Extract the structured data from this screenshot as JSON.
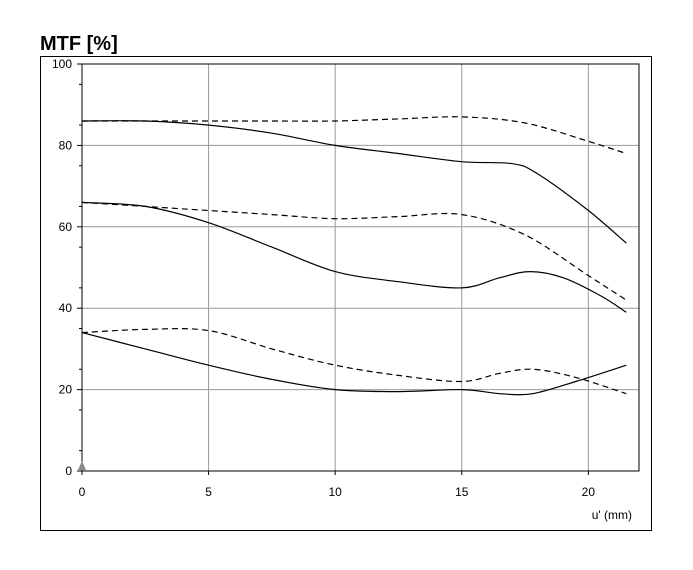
{
  "chart_data": {
    "type": "line",
    "title": "MTF [%]",
    "xlabel": "u' (mm)",
    "ylabel": "",
    "xlim": [
      0,
      22
    ],
    "ylim": [
      0,
      100
    ],
    "xticks": [
      0,
      5,
      10,
      15,
      20
    ],
    "yticks": [
      0,
      20,
      40,
      60,
      80,
      100
    ],
    "grid": true,
    "series": [
      {
        "style": "dashed",
        "x": [
          0,
          2.5,
          5,
          7.5,
          10,
          12.5,
          15,
          17.5,
          20,
          21.5
        ],
        "y": [
          86,
          86,
          86,
          86,
          86,
          86.5,
          87,
          85.5,
          81,
          78
        ]
      },
      {
        "style": "solid",
        "x": [
          0,
          2.5,
          5,
          7.5,
          10,
          12.5,
          15,
          17,
          18,
          20,
          21.5
        ],
        "y": [
          86,
          86,
          85,
          83,
          80,
          78,
          76,
          75.5,
          73,
          64,
          56
        ]
      },
      {
        "style": "dashed",
        "x": [
          0,
          2.5,
          5,
          7.5,
          10,
          12.5,
          15,
          17.5,
          20,
          21.5
        ],
        "y": [
          66,
          65,
          64,
          63,
          62,
          62.5,
          63,
          58,
          48,
          42
        ]
      },
      {
        "style": "solid",
        "x": [
          0,
          2.5,
          5,
          7.5,
          10,
          12.5,
          15,
          16.5,
          17.7,
          19,
          20.5,
          21.5
        ],
        "y": [
          66,
          65,
          61,
          55,
          49,
          46.5,
          45,
          47.5,
          49,
          47.5,
          43,
          39
        ]
      },
      {
        "style": "dashed",
        "x": [
          0,
          2.5,
          5,
          7.5,
          10,
          12.5,
          15,
          16.5,
          17.8,
          19.5,
          21.5
        ],
        "y": [
          34,
          34.8,
          34.5,
          30,
          26,
          23.5,
          22,
          24,
          25,
          23,
          19
        ]
      },
      {
        "style": "solid",
        "x": [
          0,
          2.5,
          5,
          7.5,
          10,
          12.5,
          15,
          16.5,
          17.8,
          19.5,
          21.5
        ],
        "y": [
          34,
          30,
          26,
          22.5,
          20,
          19.5,
          20,
          19,
          19,
          22,
          26
        ]
      }
    ],
    "colors": {
      "line": "#000000",
      "grid": "#999999",
      "axis": "#000000",
      "marker": "#888888"
    }
  }
}
